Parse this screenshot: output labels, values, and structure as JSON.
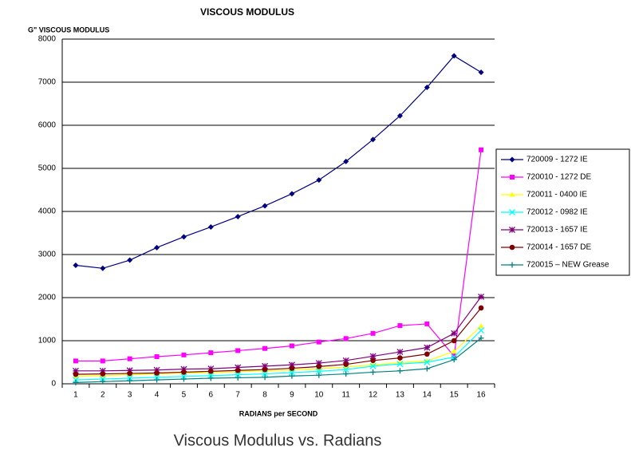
{
  "chart_data": {
    "type": "line",
    "title": "VISCOUS MODULUS",
    "y_label": "G\" VISCOUS MODULUS",
    "x_label": "RADIANS per SECOND",
    "caption": "Viscous Modulus vs. Radians",
    "categories": [
      "1",
      "2",
      "3",
      "4",
      "5",
      "6",
      "7",
      "8",
      "9",
      "10",
      "11",
      "12",
      "13",
      "14",
      "15",
      "16"
    ],
    "ylim": [
      0,
      8000
    ],
    "yticks": [
      0,
      1000,
      2000,
      3000,
      4000,
      5000,
      6000,
      7000,
      8000
    ],
    "grid": true,
    "legend": "right",
    "series": [
      {
        "name": "720009 - 1272 IE",
        "color": "#000080",
        "marker": "diamond",
        "values": [
          2750,
          2680,
          2870,
          3160,
          3410,
          3640,
          3880,
          4130,
          4410,
          4730,
          5160,
          5670,
          6220,
          6880,
          7610,
          7230
        ]
      },
      {
        "name": "720010 - 1272 DE",
        "color": "#ff00ff",
        "marker": "square",
        "values": [
          530,
          530,
          580,
          630,
          670,
          720,
          770,
          820,
          880,
          970,
          1050,
          1170,
          1350,
          1390,
          640,
          5430
        ]
      },
      {
        "name": "720011 - 0400 IE",
        "color": "#ffff00",
        "marker": "triangle",
        "values": [
          170,
          190,
          210,
          230,
          250,
          260,
          280,
          300,
          320,
          350,
          390,
          440,
          490,
          530,
          750,
          1340
        ]
      },
      {
        "name": "720012 - 0982 IE",
        "color": "#00ffff",
        "marker": "x",
        "values": [
          90,
          110,
          130,
          150,
          170,
          190,
          210,
          230,
          260,
          290,
          330,
          410,
          460,
          500,
          620,
          1240
        ]
      },
      {
        "name": "720013 - 1657 IE",
        "color": "#800080",
        "marker": "star",
        "values": [
          300,
          300,
          310,
          320,
          340,
          350,
          380,
          410,
          440,
          480,
          540,
          640,
          740,
          840,
          1170,
          2020
        ]
      },
      {
        "name": "720014 - 1657 DE",
        "color": "#800000",
        "marker": "circle",
        "values": [
          220,
          230,
          240,
          250,
          270,
          290,
          310,
          330,
          360,
          400,
          450,
          540,
          600,
          690,
          1000,
          1760
        ]
      },
      {
        "name": "720015 – NEW Grease",
        "color": "#008080",
        "marker": "plus",
        "values": [
          30,
          50,
          70,
          90,
          110,
          130,
          140,
          150,
          180,
          200,
          230,
          270,
          300,
          350,
          560,
          1060
        ]
      }
    ]
  }
}
